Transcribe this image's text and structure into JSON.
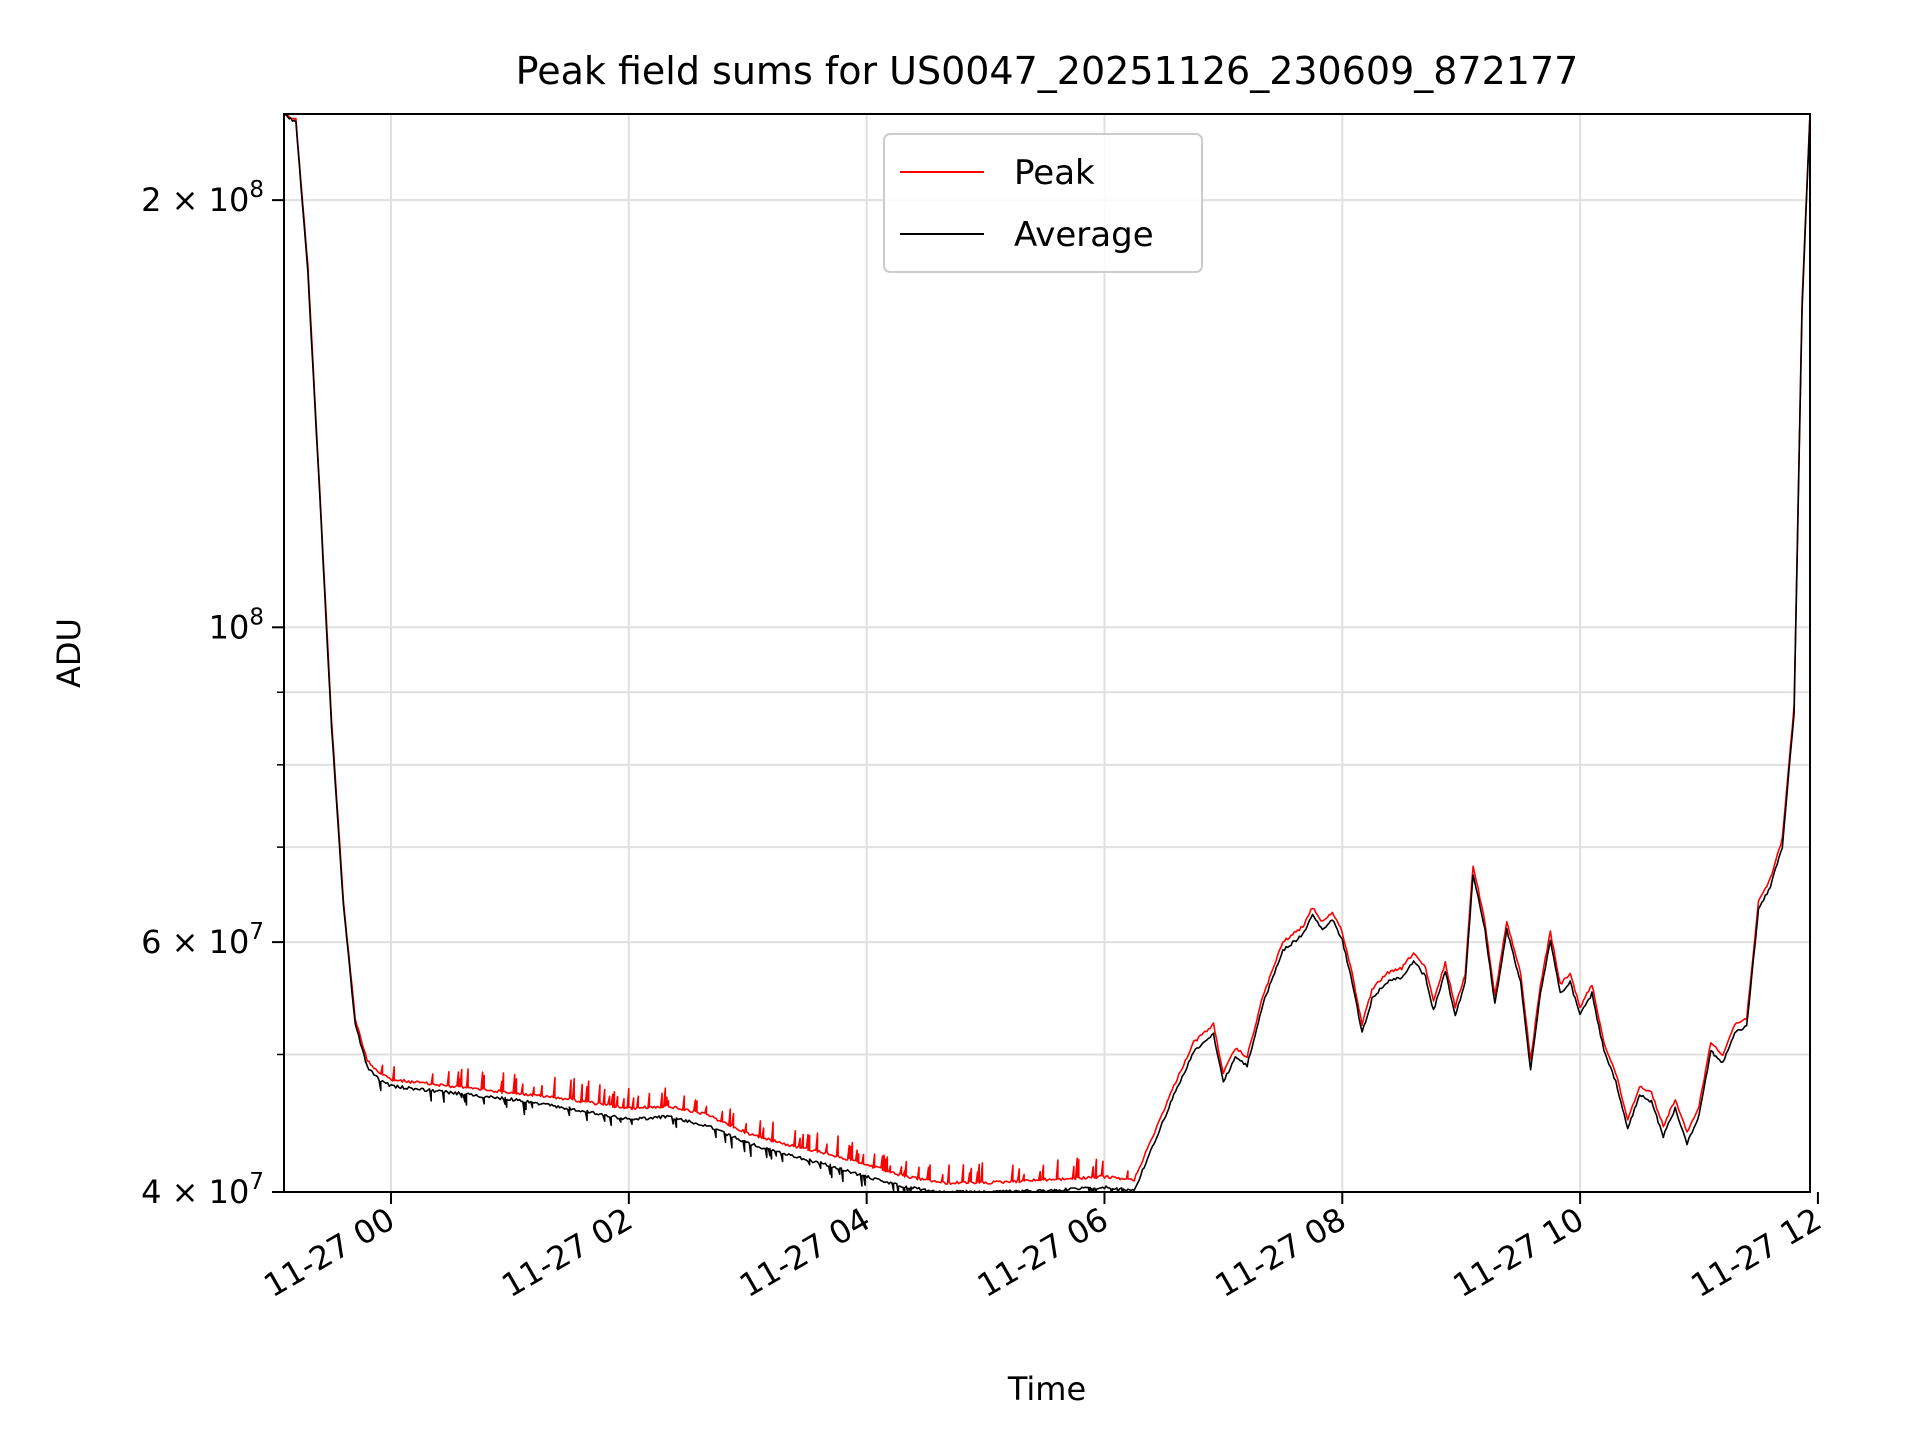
{
  "chart_data": {
    "type": "line",
    "title": "Peak field sums for US0047_20251126_230609_872177",
    "xlabel": "Time",
    "ylabel": "ADU",
    "y_scale": "log",
    "ylim": [
      40000000,
      230000000
    ],
    "xlim": [
      "2025-11-26 23:06",
      "2025-11-27 11:56"
    ],
    "grid": true,
    "legend": "upper center",
    "x_tick_labels": [
      "11-27 00",
      "11-27 02",
      "11-27 04",
      "11-27 06",
      "11-27 08",
      "11-27 10",
      "11-27 12"
    ],
    "x_ticks": [
      "2025-11-27 00:00",
      "2025-11-27 02:00",
      "2025-11-27 04:00",
      "2025-11-27 06:00",
      "2025-11-27 08:00",
      "2025-11-27 10:00",
      "2025-11-27 12:00"
    ],
    "y_ticks": [
      {
        "value": 40000000,
        "mantissa": "4",
        "base": "10",
        "exp": "7"
      },
      {
        "value": 60000000,
        "mantissa": "6",
        "base": "10",
        "exp": "7"
      },
      {
        "value": 100000000,
        "mantissa": "",
        "base": "10",
        "exp": "8"
      },
      {
        "value": 200000000,
        "mantissa": "2",
        "base": "10",
        "exp": "8"
      }
    ],
    "y_minor_ticks": [
      50000000,
      70000000,
      80000000,
      90000000
    ],
    "series": [
      {
        "name": "Peak",
        "color": "#ff0000",
        "x": [
          "2025-11-26 23:06",
          "2025-11-26 23:12",
          "2025-11-26 23:18",
          "2025-11-26 23:24",
          "2025-11-26 23:30",
          "2025-11-26 23:36",
          "2025-11-26 23:42",
          "2025-11-26 23:48",
          "2025-11-26 23:54",
          "2025-11-27 00:00",
          "2025-11-27 00:30",
          "2025-11-27 01:00",
          "2025-11-27 01:30",
          "2025-11-27 02:00",
          "2025-11-27 02:20",
          "2025-11-27 02:40",
          "2025-11-27 03:00",
          "2025-11-27 03:20",
          "2025-11-27 03:40",
          "2025-11-27 04:00",
          "2025-11-27 04:20",
          "2025-11-27 04:40",
          "2025-11-27 05:00",
          "2025-11-27 05:30",
          "2025-11-27 06:00",
          "2025-11-27 06:15",
          "2025-11-27 06:25",
          "2025-11-27 06:35",
          "2025-11-27 06:45",
          "2025-11-27 06:55",
          "2025-11-27 07:00",
          "2025-11-27 07:06",
          "2025-11-27 07:12",
          "2025-11-27 07:20",
          "2025-11-27 07:30",
          "2025-11-27 07:40",
          "2025-11-27 07:45",
          "2025-11-27 07:50",
          "2025-11-27 07:55",
          "2025-11-27 08:00",
          "2025-11-27 08:05",
          "2025-11-27 08:10",
          "2025-11-27 08:15",
          "2025-11-27 08:22",
          "2025-11-27 08:30",
          "2025-11-27 08:36",
          "2025-11-27 08:42",
          "2025-11-27 08:46",
          "2025-11-27 08:52",
          "2025-11-27 08:57",
          "2025-11-27 09:02",
          "2025-11-27 09:06",
          "2025-11-27 09:12",
          "2025-11-27 09:17",
          "2025-11-27 09:23",
          "2025-11-27 09:30",
          "2025-11-27 09:35",
          "2025-11-27 09:40",
          "2025-11-27 09:45",
          "2025-11-27 09:50",
          "2025-11-27 09:55",
          "2025-11-27 10:00",
          "2025-11-27 10:06",
          "2025-11-27 10:12",
          "2025-11-27 10:18",
          "2025-11-27 10:24",
          "2025-11-27 10:30",
          "2025-11-27 10:36",
          "2025-11-27 10:42",
          "2025-11-27 10:48",
          "2025-11-27 10:54",
          "2025-11-27 11:00",
          "2025-11-27 11:06",
          "2025-11-27 11:12",
          "2025-11-27 11:18",
          "2025-11-27 11:24",
          "2025-11-27 11:30",
          "2025-11-27 11:36",
          "2025-11-27 11:42",
          "2025-11-27 11:48",
          "2025-11-27 11:52",
          "2025-11-27 11:56"
        ],
        "y": [
          230000000,
          228000000,
          180000000,
          125000000,
          86000000,
          64000000,
          53000000,
          49500000,
          48500000,
          48000000,
          47500000,
          47000000,
          46500000,
          45800000,
          46000000,
          45300000,
          44000000,
          43200000,
          42600000,
          41800000,
          41000000,
          40600000,
          40600000,
          40800000,
          41000000,
          40800000,
          44000000,
          47500000,
          51000000,
          52500000,
          48500000,
          50500000,
          49800000,
          55000000,
          60000000,
          61500000,
          63500000,
          62000000,
          63000000,
          61000000,
          57000000,
          52500000,
          55500000,
          57000000,
          57500000,
          59000000,
          57500000,
          54500000,
          58000000,
          54000000,
          57000000,
          68000000,
          62000000,
          55000000,
          62000000,
          57000000,
          49500000,
          56000000,
          61000000,
          56000000,
          57000000,
          54000000,
          56000000,
          51000000,
          48500000,
          45000000,
          47500000,
          47000000,
          44500000,
          46500000,
          44000000,
          46000000,
          51000000,
          50000000,
          52500000,
          53000000,
          64000000,
          66500000,
          71000000,
          88000000,
          170000000,
          230000000
        ]
      },
      {
        "name": "Average",
        "color": "#000000",
        "x": [
          "2025-11-26 23:06",
          "2025-11-26 23:12",
          "2025-11-26 23:18",
          "2025-11-26 23:24",
          "2025-11-26 23:30",
          "2025-11-26 23:36",
          "2025-11-26 23:42",
          "2025-11-26 23:48",
          "2025-11-26 23:54",
          "2025-11-27 00:00",
          "2025-11-27 00:30",
          "2025-11-27 01:00",
          "2025-11-27 01:30",
          "2025-11-27 02:00",
          "2025-11-27 02:20",
          "2025-11-27 02:40",
          "2025-11-27 03:00",
          "2025-11-27 03:20",
          "2025-11-27 03:40",
          "2025-11-27 04:00",
          "2025-11-27 04:20",
          "2025-11-27 04:40",
          "2025-11-27 05:00",
          "2025-11-27 05:30",
          "2025-11-27 06:00",
          "2025-11-27 06:15",
          "2025-11-27 06:25",
          "2025-11-27 06:35",
          "2025-11-27 06:45",
          "2025-11-27 06:55",
          "2025-11-27 07:00",
          "2025-11-27 07:06",
          "2025-11-27 07:12",
          "2025-11-27 07:20",
          "2025-11-27 07:30",
          "2025-11-27 07:40",
          "2025-11-27 07:45",
          "2025-11-27 07:50",
          "2025-11-27 07:55",
          "2025-11-27 08:00",
          "2025-11-27 08:05",
          "2025-11-27 08:10",
          "2025-11-27 08:15",
          "2025-11-27 08:22",
          "2025-11-27 08:30",
          "2025-11-27 08:36",
          "2025-11-27 08:42",
          "2025-11-27 08:46",
          "2025-11-27 08:52",
          "2025-11-27 08:57",
          "2025-11-27 09:02",
          "2025-11-27 09:06",
          "2025-11-27 09:12",
          "2025-11-27 09:17",
          "2025-11-27 09:23",
          "2025-11-27 09:30",
          "2025-11-27 09:35",
          "2025-11-27 09:40",
          "2025-11-27 09:45",
          "2025-11-27 09:50",
          "2025-11-27 09:55",
          "2025-11-27 10:00",
          "2025-11-27 10:06",
          "2025-11-27 10:12",
          "2025-11-27 10:18",
          "2025-11-27 10:24",
          "2025-11-27 10:30",
          "2025-11-27 10:36",
          "2025-11-27 10:42",
          "2025-11-27 10:48",
          "2025-11-27 10:54",
          "2025-11-27 11:00",
          "2025-11-27 11:06",
          "2025-11-27 11:12",
          "2025-11-27 11:18",
          "2025-11-27 11:24",
          "2025-11-27 11:30",
          "2025-11-27 11:36",
          "2025-11-27 11:42",
          "2025-11-27 11:48",
          "2025-11-27 11:52",
          "2025-11-27 11:56"
        ],
        "y": [
          230000000,
          227000000,
          178000000,
          124000000,
          85000000,
          63500000,
          52500000,
          49000000,
          48000000,
          47500000,
          47000000,
          46500000,
          45800000,
          45000000,
          45200000,
          44500000,
          43300000,
          42500000,
          41800000,
          41000000,
          40300000,
          40000000,
          40000000,
          40100000,
          40300000,
          40100000,
          43300000,
          46800000,
          50200000,
          51700000,
          47800000,
          49800000,
          49100000,
          54300000,
          59200000,
          60700000,
          62700000,
          61200000,
          62200000,
          60200000,
          56200000,
          51800000,
          54700000,
          56200000,
          56700000,
          58200000,
          56700000,
          53700000,
          57200000,
          53300000,
          56200000,
          67000000,
          61200000,
          54300000,
          61200000,
          56200000,
          48800000,
          55200000,
          60200000,
          55200000,
          56200000,
          53300000,
          55200000,
          50300000,
          47800000,
          44300000,
          46800000,
          46300000,
          43800000,
          45800000,
          43300000,
          45300000,
          50300000,
          49300000,
          51800000,
          52300000,
          63200000,
          65700000,
          70000000,
          87000000,
          168000000,
          230000000
        ]
      }
    ]
  }
}
